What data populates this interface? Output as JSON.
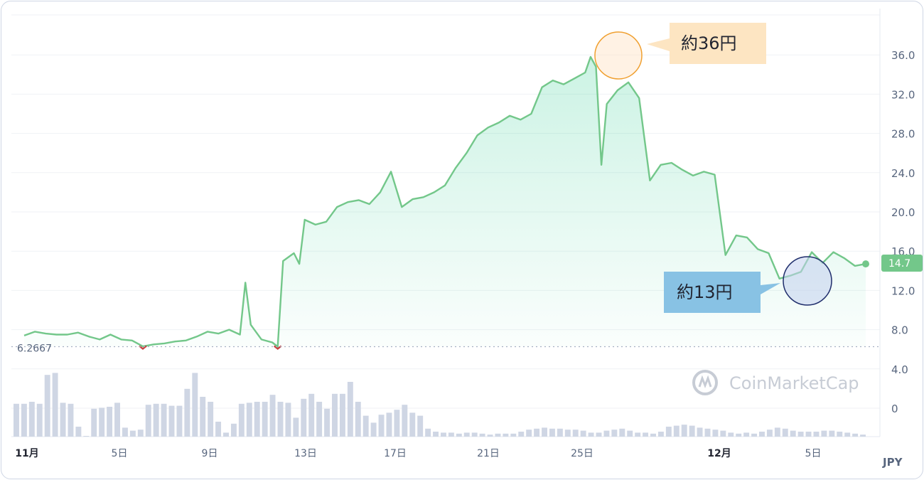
{
  "chart_data": {
    "type": "area",
    "currency": "JPY",
    "ylim": [
      -4,
      40
    ],
    "y_ticks": [
      "36.0",
      "32.0",
      "28.0",
      "24.0",
      "20.0",
      "16.0",
      "12.0",
      "8.0",
      "4.0",
      "0"
    ],
    "y_tick_values": [
      36,
      32,
      28,
      24,
      20,
      16,
      12,
      8,
      4,
      0
    ],
    "x_ticks": [
      {
        "label": "11月",
        "bold": true
      },
      {
        "label": "5日",
        "bold": false
      },
      {
        "label": "9日",
        "bold": false
      },
      {
        "label": "13日",
        "bold": false
      },
      {
        "label": "17日",
        "bold": false
      },
      {
        "label": "21日",
        "bold": false
      },
      {
        "label": "25日",
        "bold": false
      },
      {
        "label": "12月",
        "bold": true
      },
      {
        "label": "5日",
        "bold": false
      }
    ],
    "min_label": "6.2667",
    "min_value": 6.2667,
    "current_price": "14.7",
    "current_value": 14.7,
    "series": [
      {
        "color": "#73c78a",
        "points": [
          [
            0,
            7.4
          ],
          [
            1,
            7.8
          ],
          [
            2,
            7.6
          ],
          [
            3,
            7.5
          ],
          [
            4,
            7.5
          ],
          [
            5,
            7.7
          ],
          [
            6,
            7.3
          ],
          [
            7,
            7.0
          ],
          [
            8,
            7.5
          ],
          [
            9,
            7.0
          ],
          [
            10,
            6.9
          ],
          [
            11,
            6.3
          ],
          [
            12,
            6.5
          ],
          [
            13,
            6.6
          ],
          [
            14,
            6.8
          ],
          [
            15,
            6.9
          ],
          [
            16,
            7.3
          ],
          [
            17,
            7.8
          ],
          [
            18,
            7.6
          ],
          [
            19,
            8.0
          ],
          [
            20,
            7.5
          ],
          [
            20.5,
            12.8
          ],
          [
            21,
            8.5
          ],
          [
            22,
            7.0
          ],
          [
            23,
            6.7
          ],
          [
            23.5,
            6.27
          ],
          [
            24,
            15.0
          ],
          [
            25,
            15.8
          ],
          [
            25.5,
            14.7
          ],
          [
            26,
            19.2
          ],
          [
            27,
            18.7
          ],
          [
            28,
            19.0
          ],
          [
            29,
            20.5
          ],
          [
            30,
            21.0
          ],
          [
            31,
            21.2
          ],
          [
            32,
            20.8
          ],
          [
            33,
            22.0
          ],
          [
            34,
            24.1
          ],
          [
            35,
            20.5
          ],
          [
            36,
            21.3
          ],
          [
            37,
            21.5
          ],
          [
            38,
            22.0
          ],
          [
            39,
            22.7
          ],
          [
            40,
            24.5
          ],
          [
            41,
            26.0
          ],
          [
            42,
            27.8
          ],
          [
            43,
            28.6
          ],
          [
            44,
            29.1
          ],
          [
            45,
            29.8
          ],
          [
            46,
            29.4
          ],
          [
            47,
            30.0
          ],
          [
            48,
            32.7
          ],
          [
            49,
            33.4
          ],
          [
            50,
            33.0
          ],
          [
            51,
            33.6
          ],
          [
            52,
            34.2
          ],
          [
            52.5,
            35.8
          ],
          [
            53,
            34.8
          ],
          [
            53.5,
            24.8
          ],
          [
            54,
            31.0
          ],
          [
            55,
            32.4
          ],
          [
            56,
            33.2
          ],
          [
            57,
            31.6
          ],
          [
            58,
            23.2
          ],
          [
            59,
            24.8
          ],
          [
            60,
            25.0
          ],
          [
            61,
            24.3
          ],
          [
            62,
            23.7
          ],
          [
            63,
            24.1
          ],
          [
            64,
            23.8
          ],
          [
            65,
            15.6
          ],
          [
            66,
            17.6
          ],
          [
            67,
            17.4
          ],
          [
            68,
            16.2
          ],
          [
            69,
            15.8
          ],
          [
            70,
            13.2
          ],
          [
            71,
            13.5
          ],
          [
            72,
            13.9
          ],
          [
            73,
            15.9
          ],
          [
            74,
            14.8
          ],
          [
            75,
            15.9
          ],
          [
            76,
            15.3
          ],
          [
            77,
            14.5
          ],
          [
            78,
            14.7
          ]
        ]
      }
    ],
    "volume": [
      3.3,
      3.3,
      3.5,
      3.3,
      6.2,
      6.4,
      3.4,
      3.3,
      1.0,
      0.0,
      2.8,
      2.9,
      3.0,
      3.4,
      0.9,
      0.6,
      0.7,
      3.2,
      3.3,
      3.3,
      3.1,
      3.1,
      4.8,
      6.4,
      4.0,
      3.5,
      1.5,
      0.4,
      1.3,
      3.3,
      3.4,
      3.5,
      3.5,
      4.2,
      3.5,
      3.4,
      1.9,
      3.8,
      4.3,
      3.5,
      2.8,
      4.3,
      4.3,
      5.5,
      3.5,
      2.1,
      1.4,
      2.2,
      2.4,
      2.7,
      3.2,
      2.4,
      2.1,
      0.8,
      0.5,
      0.4,
      0.4,
      0.3,
      0.4,
      0.4,
      0.3,
      0.2,
      0.3,
      0.3,
      0.3,
      0.5,
      0.7,
      0.8,
      0.9,
      0.8,
      0.8,
      0.7,
      0.7,
      0.6,
      0.4,
      0.4,
      0.6,
      0.7,
      0.8,
      0.6,
      0.4,
      0.4,
      0.3,
      0.5,
      1.0,
      1.1,
      1.2,
      1.1,
      0.9,
      0.8,
      0.7,
      0.6,
      0.4,
      0.3,
      0.4,
      0.3,
      0.5,
      0.7,
      0.9,
      0.8,
      0.6,
      0.5,
      0.5,
      0.5,
      0.6,
      0.6,
      0.5,
      0.4,
      0.3,
      0.2
    ],
    "markers": [
      {
        "label": "約36円",
        "value": 36,
        "x": 52.5,
        "style": "orange"
      },
      {
        "label": "約13円",
        "value": 13,
        "x": 70.5,
        "style": "blue"
      }
    ],
    "grid": true,
    "colors": {
      "line": "#73c78a",
      "line_dark": "#16c784",
      "down": "#c84141",
      "grid": "#eff2f5",
      "volume": "#cfd6e4"
    }
  },
  "watermark": "CoinMarketCap"
}
